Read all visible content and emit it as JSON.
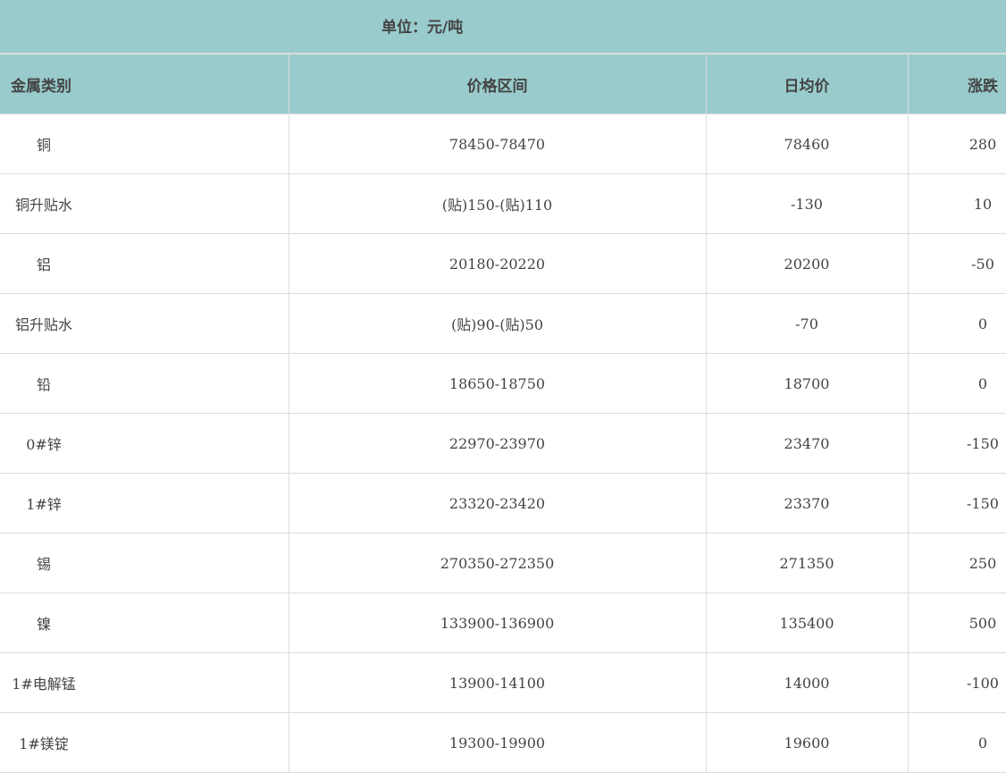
{
  "unit_label": "单位：元/吨",
  "columns": [
    "金属类别",
    "价格区间",
    "日均价",
    "涨跌"
  ],
  "header_bg": "#99cbcc",
  "rows": [
    {
      "name": "铜",
      "range": "78450-78470",
      "avg": "78460",
      "change": "280"
    },
    {
      "name": "铜升贴水",
      "range": "(贴)150-(贴)110",
      "avg": "-130",
      "change": "10"
    },
    {
      "name": "铝",
      "range": "20180-20220",
      "avg": "20200",
      "change": "-50"
    },
    {
      "name": "铝升贴水",
      "range": "(贴)90-(贴)50",
      "avg": "-70",
      "change": "0"
    },
    {
      "name": "铅",
      "range": "18650-18750",
      "avg": "18700",
      "change": "0"
    },
    {
      "name": "0#锌",
      "range": "22970-23970",
      "avg": "23470",
      "change": "-150"
    },
    {
      "name": "1#锌",
      "range": "23320-23420",
      "avg": "23370",
      "change": "-150"
    },
    {
      "name": "锡",
      "range": "270350-272350",
      "avg": "271350",
      "change": "250"
    },
    {
      "name": "镍",
      "range": "133900-136900",
      "avg": "135400",
      "change": "500"
    },
    {
      "name": "1#电解锰",
      "range": "13900-14100",
      "avg": "14000",
      "change": "-100"
    },
    {
      "name": "1#镁锭",
      "range": "19300-19900",
      "avg": "19600",
      "change": "0"
    }
  ]
}
